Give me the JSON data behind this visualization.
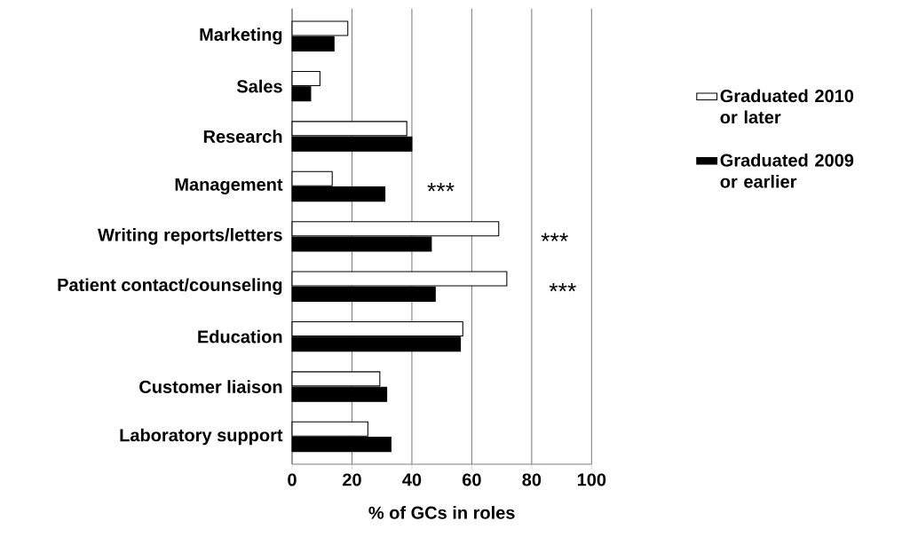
{
  "chart_data": {
    "type": "bar",
    "orientation": "horizontal",
    "xlabel": "% of GCs in roles",
    "categories": [
      "Marketing",
      "Sales",
      "Research",
      "Management",
      "Writing reports/letters",
      "Patient contact/counseling",
      "Education",
      "Customer liaison",
      "Laboratory support"
    ],
    "series": [
      {
        "name": "Graduated 2010 or later",
        "color": "#ffffff",
        "values": [
          18.6,
          9.3,
          38.3,
          13.4,
          69,
          71.7,
          57,
          29.3,
          25.3
        ]
      },
      {
        "name": "Graduated 2009 or earlier",
        "color": "#000000",
        "values": [
          14,
          6.2,
          40,
          31,
          46.5,
          47.8,
          56.2,
          31.6,
          33
        ]
      }
    ],
    "xlim": [
      0,
      100
    ],
    "xticks": [
      0,
      20,
      40,
      60,
      80,
      100
    ],
    "grid": "x",
    "legend": "right",
    "annotations": [
      "***",
      "***",
      "***"
    ]
  }
}
